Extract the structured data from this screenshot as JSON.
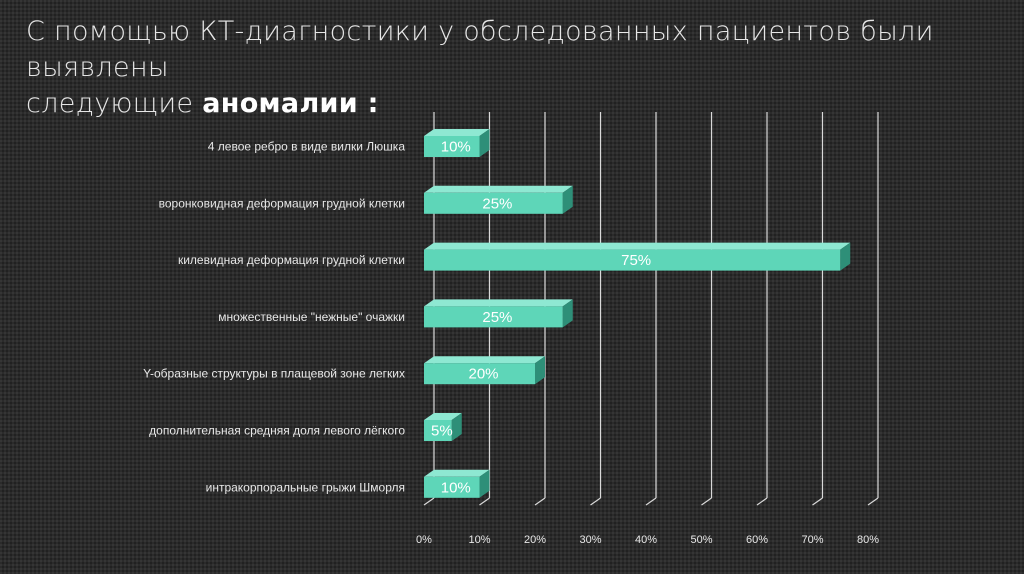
{
  "title": {
    "line1": "С помощью КТ-диагностики у обследованных пациентов были выявлены",
    "line2_prefix": "следующие ",
    "line2_emphasis": "аномалии :"
  },
  "colors": {
    "bar_front": "#5ed6b8",
    "bar_top": "#8ee8d2",
    "bar_side": "#2e8f78",
    "grid": "#d9d9d9",
    "background": "#2b2b2b"
  },
  "chart_data": {
    "type": "bar",
    "orientation": "horizontal",
    "style": "3d",
    "categories": [
      "4 левое ребро в виде вилки Люшка",
      "воронковидная деформация грудной клетки",
      "килевидная деформация грудной клетки",
      "множественные \"нежные\" очажки",
      "Y-образные структуры в плащевой зоне легких",
      "дополнительная средняя доля левого лёгкого",
      "интракорпоральные грыжи Шморля"
    ],
    "values": [
      10,
      25,
      75,
      25,
      20,
      5,
      10
    ],
    "data_labels": [
      "10%",
      "25%",
      "75%",
      "25%",
      "20%",
      "5%",
      "10%"
    ],
    "xlim": [
      0,
      80
    ],
    "ticks": [
      0,
      10,
      20,
      30,
      40,
      50,
      60,
      70,
      80
    ],
    "tick_labels": [
      "0%",
      "10%",
      "20%",
      "30%",
      "40%",
      "50%",
      "60%",
      "70%",
      "80%"
    ],
    "grid": true,
    "legend": "none"
  }
}
